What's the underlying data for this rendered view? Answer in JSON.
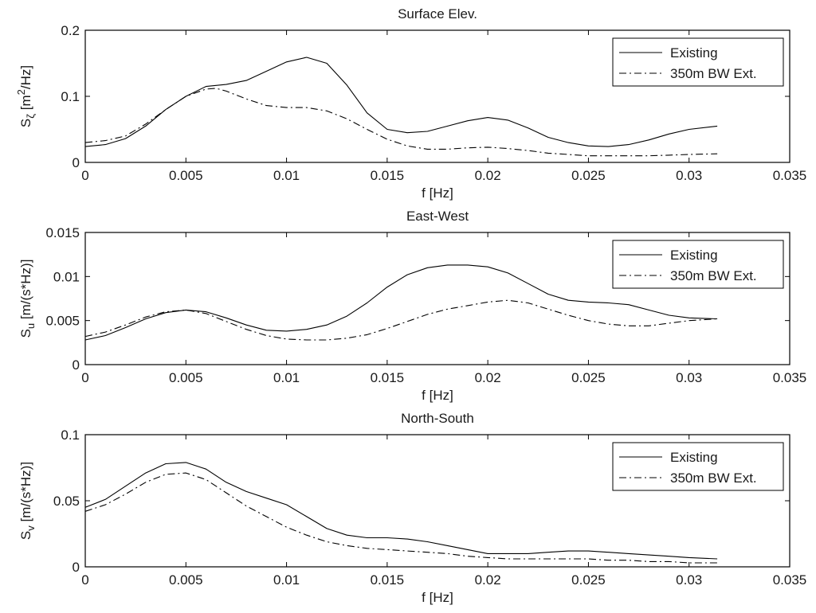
{
  "chart_data": [
    {
      "type": "line",
      "title": "Surface Elev.",
      "xlabel": "f [Hz]",
      "ylabel_main": "S",
      "ylabel_sub": "ζ",
      "ylabel_rest": " [m",
      "ylabel_sup": "2",
      "ylabel_end": "/Hz]",
      "xlim": [
        0,
        0.035
      ],
      "ylim": [
        0,
        0.2
      ],
      "xticks": [
        "0",
        "0.005",
        "0.01",
        "0.015",
        "0.02",
        "0.025",
        "0.03",
        "0.035"
      ],
      "yticks": [
        "0",
        "0.1",
        "0.2"
      ],
      "legend": "top-right",
      "grid": false,
      "series": [
        {
          "name": "Existing",
          "style": "solid",
          "x": [
            0,
            0.001,
            0.002,
            0.003,
            0.004,
            0.005,
            0.006,
            0.007,
            0.008,
            0.009,
            0.01,
            0.011,
            0.012,
            0.013,
            0.014,
            0.015,
            0.016,
            0.017,
            0.018,
            0.019,
            0.02,
            0.021,
            0.022,
            0.023,
            0.024,
            0.025,
            0.026,
            0.027,
            0.028,
            0.029,
            0.03,
            0.0314
          ],
          "values": [
            0.024,
            0.027,
            0.036,
            0.055,
            0.08,
            0.1,
            0.115,
            0.118,
            0.124,
            0.138,
            0.152,
            0.159,
            0.15,
            0.117,
            0.075,
            0.05,
            0.045,
            0.047,
            0.055,
            0.063,
            0.068,
            0.064,
            0.052,
            0.038,
            0.03,
            0.025,
            0.024,
            0.027,
            0.034,
            0.043,
            0.05,
            0.055
          ]
        },
        {
          "name": "350m BW Ext.",
          "style": "dashdot",
          "x": [
            0,
            0.001,
            0.002,
            0.003,
            0.004,
            0.005,
            0.006,
            0.0065,
            0.007,
            0.008,
            0.009,
            0.01,
            0.011,
            0.012,
            0.013,
            0.014,
            0.015,
            0.016,
            0.017,
            0.018,
            0.019,
            0.02,
            0.021,
            0.022,
            0.023,
            0.024,
            0.025,
            0.026,
            0.027,
            0.028,
            0.029,
            0.03,
            0.0314
          ],
          "values": [
            0.03,
            0.033,
            0.04,
            0.058,
            0.08,
            0.1,
            0.111,
            0.112,
            0.108,
            0.096,
            0.086,
            0.083,
            0.083,
            0.078,
            0.066,
            0.05,
            0.035,
            0.025,
            0.02,
            0.02,
            0.022,
            0.023,
            0.021,
            0.018,
            0.014,
            0.012,
            0.01,
            0.01,
            0.01,
            0.01,
            0.011,
            0.012,
            0.013
          ]
        }
      ]
    },
    {
      "type": "line",
      "title": "East-West",
      "xlabel": "f [Hz]",
      "ylabel_main": "S",
      "ylabel_sub": "u",
      "ylabel_rest": " [m/(s*Hz)]",
      "ylabel_sup": "",
      "ylabel_end": "",
      "xlim": [
        0,
        0.035
      ],
      "ylim": [
        0,
        0.015
      ],
      "xticks": [
        "0",
        "0.005",
        "0.01",
        "0.015",
        "0.02",
        "0.025",
        "0.03",
        "0.035"
      ],
      "yticks": [
        "0",
        "0.005",
        "0.01",
        "0.015"
      ],
      "legend": "top-right",
      "grid": false,
      "series": [
        {
          "name": "Existing",
          "style": "solid",
          "x": [
            0,
            0.001,
            0.002,
            0.003,
            0.004,
            0.005,
            0.006,
            0.007,
            0.008,
            0.009,
            0.01,
            0.011,
            0.012,
            0.013,
            0.014,
            0.015,
            0.016,
            0.017,
            0.018,
            0.019,
            0.02,
            0.021,
            0.022,
            0.023,
            0.024,
            0.025,
            0.026,
            0.027,
            0.028,
            0.029,
            0.03,
            0.0314
          ],
          "values": [
            0.0028,
            0.0033,
            0.0042,
            0.0052,
            0.0059,
            0.0062,
            0.006,
            0.0053,
            0.0045,
            0.0039,
            0.0038,
            0.004,
            0.0045,
            0.0055,
            0.007,
            0.0088,
            0.0102,
            0.011,
            0.0113,
            0.0113,
            0.0111,
            0.0104,
            0.0092,
            0.008,
            0.0073,
            0.0071,
            0.007,
            0.0068,
            0.0062,
            0.0056,
            0.0053,
            0.0052
          ]
        },
        {
          "name": "350m BW Ext.",
          "style": "dashdot",
          "x": [
            0,
            0.001,
            0.002,
            0.003,
            0.004,
            0.005,
            0.006,
            0.007,
            0.008,
            0.009,
            0.01,
            0.011,
            0.012,
            0.013,
            0.014,
            0.015,
            0.016,
            0.017,
            0.018,
            0.019,
            0.02,
            0.021,
            0.022,
            0.023,
            0.024,
            0.025,
            0.026,
            0.027,
            0.028,
            0.029,
            0.03,
            0.0314
          ],
          "values": [
            0.0032,
            0.0037,
            0.0045,
            0.0054,
            0.006,
            0.0062,
            0.0058,
            0.0049,
            0.004,
            0.0033,
            0.0029,
            0.0028,
            0.0028,
            0.003,
            0.0034,
            0.0041,
            0.0049,
            0.0057,
            0.0063,
            0.0067,
            0.0071,
            0.0073,
            0.007,
            0.0063,
            0.0056,
            0.005,
            0.0046,
            0.0044,
            0.0044,
            0.0047,
            0.005,
            0.0052
          ]
        }
      ]
    },
    {
      "type": "line",
      "title": "North-South",
      "xlabel": "f [Hz]",
      "ylabel_main": "S",
      "ylabel_sub": "v",
      "ylabel_rest": " [m/(s*Hz)]",
      "ylabel_sup": "",
      "ylabel_end": "",
      "xlim": [
        0,
        0.035
      ],
      "ylim": [
        0,
        0.1
      ],
      "xticks": [
        "0",
        "0.005",
        "0.01",
        "0.015",
        "0.02",
        "0.025",
        "0.03",
        "0.035"
      ],
      "yticks": [
        "0",
        "0.05",
        "0.1"
      ],
      "legend": "top-right",
      "grid": false,
      "series": [
        {
          "name": "Existing",
          "style": "solid",
          "x": [
            0,
            0.001,
            0.002,
            0.003,
            0.004,
            0.005,
            0.006,
            0.007,
            0.008,
            0.009,
            0.01,
            0.011,
            0.012,
            0.013,
            0.014,
            0.015,
            0.016,
            0.017,
            0.018,
            0.019,
            0.02,
            0.021,
            0.022,
            0.023,
            0.024,
            0.025,
            0.026,
            0.027,
            0.028,
            0.029,
            0.03,
            0.0314
          ],
          "values": [
            0.045,
            0.051,
            0.061,
            0.071,
            0.078,
            0.079,
            0.074,
            0.064,
            0.057,
            0.052,
            0.047,
            0.038,
            0.029,
            0.024,
            0.022,
            0.022,
            0.021,
            0.019,
            0.016,
            0.013,
            0.01,
            0.01,
            0.01,
            0.011,
            0.012,
            0.012,
            0.011,
            0.01,
            0.009,
            0.008,
            0.007,
            0.006
          ]
        },
        {
          "name": "350m BW Ext.",
          "style": "dashdot",
          "x": [
            0,
            0.001,
            0.002,
            0.003,
            0.004,
            0.005,
            0.006,
            0.007,
            0.008,
            0.009,
            0.01,
            0.011,
            0.012,
            0.013,
            0.014,
            0.015,
            0.016,
            0.017,
            0.018,
            0.019,
            0.02,
            0.021,
            0.022,
            0.023,
            0.024,
            0.025,
            0.026,
            0.027,
            0.028,
            0.029,
            0.03,
            0.0314
          ],
          "values": [
            0.042,
            0.047,
            0.055,
            0.064,
            0.07,
            0.071,
            0.066,
            0.056,
            0.046,
            0.038,
            0.03,
            0.024,
            0.019,
            0.016,
            0.014,
            0.013,
            0.012,
            0.011,
            0.01,
            0.008,
            0.007,
            0.006,
            0.006,
            0.006,
            0.006,
            0.006,
            0.005,
            0.005,
            0.004,
            0.004,
            0.003,
            0.003
          ]
        }
      ]
    }
  ]
}
